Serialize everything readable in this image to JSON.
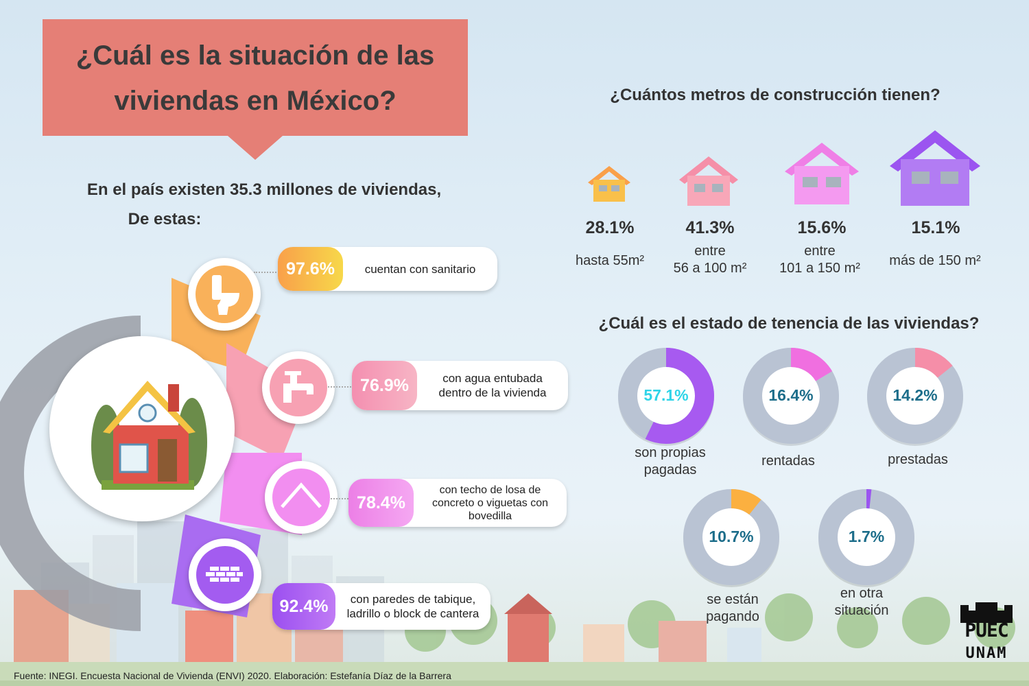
{
  "title": "¿Cuál es la situación de las\nviviendas en México?",
  "intro": {
    "line1": "En el país existen 35.3 millones de viviendas,",
    "line2": "De estas:"
  },
  "services": [
    {
      "pct": "97.6%",
      "label": "cuentan con sanitario",
      "icon": "toilet-icon",
      "color": "#f9a84a"
    },
    {
      "pct": "76.9%",
      "label": "con agua entubada\ndentro de la vivienda",
      "icon": "faucet-icon",
      "color": "#f39ab0"
    },
    {
      "pct": "78.4%",
      "label": "con techo de losa de\nconcreto o viguetas con\nbovedilla",
      "icon": "roof-icon",
      "color": "#f07fe8"
    },
    {
      "pct": "92.4%",
      "label": "con paredes de tabique,\nladrillo o block de cantera",
      "icon": "brick-wall-icon",
      "color": "#a35cf0"
    }
  ],
  "construction": {
    "heading": "¿Cuántos metros de construcción tienen?",
    "items": [
      {
        "pct": "28.1%",
        "label": "hasta 55m²",
        "icon": "small-house-icon",
        "color": "#fbb040"
      },
      {
        "pct": "41.3%",
        "label": "entre\n56 a 100 m²",
        "icon": "medium-house-icon",
        "color": "#f7a1b3"
      },
      {
        "pct": "15.6%",
        "label": "entre\n101 a 150 m²",
        "icon": "large-house-icon",
        "color": "#f28ef0"
      },
      {
        "pct": "15.1%",
        "label": "más de 150 m²",
        "icon": "xlarge-house-icon",
        "color": "#a66af2"
      }
    ]
  },
  "tenure": {
    "heading": "¿Cuál es el estado de tenencia de las viviendas?",
    "items": [
      {
        "pct": "57.1%",
        "value": 0.571,
        "label": "son propias\npagadas",
        "color": "#a75af0",
        "text_color": "#2fd4e8"
      },
      {
        "pct": "16.4%",
        "value": 0.164,
        "label": "rentadas",
        "color": "#f06fe0",
        "text_color": "#1c6d8a"
      },
      {
        "pct": "14.2%",
        "value": 0.142,
        "label": "prestadas",
        "color": "#f58ea8",
        "text_color": "#1c6d8a"
      },
      {
        "pct": "10.7%",
        "value": 0.107,
        "label": "se están\npagando",
        "color": "#fbb040",
        "text_color": "#1c6d8a"
      },
      {
        "pct": "1.7%",
        "value": 0.017,
        "label": "en otra\nsituación",
        "color": "#9b55f0",
        "text_color": "#1c6d8a"
      }
    ]
  },
  "source": "Fuente: INEGI. Encuesta Nacional de Vivienda (ENVI) 2020. Elaboración: Estefanía Díaz de la Barrera",
  "logo": {
    "line1": "PUEC",
    "line2": "UNAM"
  },
  "colors": {
    "banner": "#e57f76",
    "donut_track": "#b9c3d3",
    "gray_arc": "#9a9ea6"
  }
}
